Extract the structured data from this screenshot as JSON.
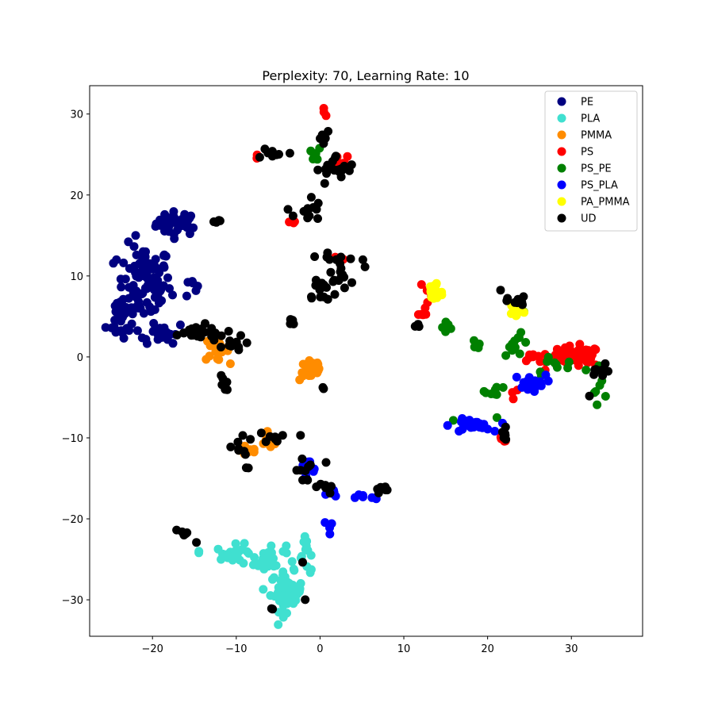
{
  "chart_data": {
    "type": "scatter",
    "title": "Perplexity: 70, Learning Rate: 10",
    "xlabel": "",
    "ylabel": "",
    "xlim": [
      -27.5,
      38.5
    ],
    "ylim": [
      -34.5,
      33.5
    ],
    "x_ticks": [
      -20,
      -10,
      0,
      10,
      20,
      30
    ],
    "y_ticks": [
      -30,
      -20,
      -10,
      0,
      10,
      20,
      30
    ],
    "x_tick_labels": [
      "−20",
      "−10",
      "0",
      "10",
      "20",
      "30"
    ],
    "y_tick_labels": [
      "−30",
      "−20",
      "−10",
      "0",
      "10",
      "20",
      "30"
    ],
    "grid": false,
    "legend_position": "top-right",
    "series": [
      {
        "name": "PE",
        "color": "#000080",
        "clusters": [
          {
            "cx": -17,
            "cy": 16.5,
            "sx": 1.6,
            "sy": 0.9,
            "n": 40
          },
          {
            "cx": -21,
            "cy": 9,
            "sx": 2.0,
            "sy": 3.0,
            "n": 90
          },
          {
            "cx": -23.5,
            "cy": 5,
            "sx": 1.2,
            "sy": 2.0,
            "n": 30
          },
          {
            "cx": -19,
            "cy": 3,
            "sx": 2.0,
            "sy": 0.8,
            "n": 25
          },
          {
            "cx": -15.5,
            "cy": 9,
            "sx": 0.5,
            "sy": 0.8,
            "n": 6
          }
        ]
      },
      {
        "name": "PLA",
        "color": "#40e0d0",
        "clusters": [
          {
            "cx": -10,
            "cy": -24.5,
            "sx": 1.5,
            "sy": 0.8,
            "n": 25
          },
          {
            "cx": -6,
            "cy": -25,
            "sx": 1.2,
            "sy": 1.2,
            "n": 25
          },
          {
            "cx": -4,
            "cy": -29,
            "sx": 1.2,
            "sy": 1.5,
            "n": 50
          },
          {
            "cx": -1.5,
            "cy": -24.5,
            "sx": 0.6,
            "sy": 1.5,
            "n": 12
          },
          {
            "cx": -14.5,
            "cy": -24.2,
            "sx": 0.2,
            "sy": 0.2,
            "n": 2
          }
        ]
      },
      {
        "name": "PMMA",
        "color": "#ff8c00",
        "clusters": [
          {
            "cx": -12.5,
            "cy": 1,
            "sx": 1.0,
            "sy": 0.9,
            "n": 22
          },
          {
            "cx": -1,
            "cy": -1.5,
            "sx": 0.9,
            "sy": 0.9,
            "n": 30
          },
          {
            "cx": -8.5,
            "cy": -11.5,
            "sx": 0.7,
            "sy": 0.6,
            "n": 10
          },
          {
            "cx": -6,
            "cy": -10.5,
            "sx": 0.8,
            "sy": 0.5,
            "n": 12
          }
        ]
      },
      {
        "name": "PS",
        "color": "#ff0000",
        "clusters": [
          {
            "cx": 0.5,
            "cy": 30.2,
            "sx": 0.3,
            "sy": 0.3,
            "n": 3
          },
          {
            "cx": 2.5,
            "cy": 24,
            "sx": 0.6,
            "sy": 0.6,
            "n": 6
          },
          {
            "cx": -7.5,
            "cy": 24.8,
            "sx": 0.5,
            "sy": 0.4,
            "n": 3
          },
          {
            "cx": -3.5,
            "cy": 16.5,
            "sx": 0.5,
            "sy": 0.2,
            "n": 3
          },
          {
            "cx": 12,
            "cy": 5,
            "sx": 0.5,
            "sy": 0.4,
            "n": 4
          },
          {
            "cx": 12,
            "cy": 9,
            "sx": 0.2,
            "sy": 0.2,
            "n": 1
          },
          {
            "cx": 13,
            "cy": 7,
            "sx": 0.6,
            "sy": 0.8,
            "n": 5
          },
          {
            "cx": 30.5,
            "cy": 0,
            "sx": 2.0,
            "sy": 0.8,
            "n": 45
          },
          {
            "cx": 25.5,
            "cy": 0,
            "sx": 0.7,
            "sy": 0.6,
            "n": 8
          },
          {
            "cx": 22,
            "cy": -10,
            "sx": 0.5,
            "sy": 0.8,
            "n": 4
          },
          {
            "cx": 23.5,
            "cy": -4.5,
            "sx": 0.5,
            "sy": 0.5,
            "n": 3
          },
          {
            "cx": 2.5,
            "cy": 12,
            "sx": 0.3,
            "sy": 0.4,
            "n": 2
          }
        ]
      },
      {
        "name": "PS_PE",
        "color": "#008000",
        "clusters": [
          {
            "cx": -0.5,
            "cy": 25,
            "sx": 0.5,
            "sy": 0.5,
            "n": 6
          },
          {
            "cx": 15,
            "cy": 4,
            "sx": 0.5,
            "sy": 0.8,
            "n": 6
          },
          {
            "cx": 18.5,
            "cy": 1.7,
            "sx": 0.5,
            "sy": 0.4,
            "n": 4
          },
          {
            "cx": 21,
            "cy": -4.2,
            "sx": 0.8,
            "sy": 0.4,
            "n": 8
          },
          {
            "cx": 23.5,
            "cy": 1.5,
            "sx": 1.0,
            "sy": 0.8,
            "n": 12
          },
          {
            "cx": 28,
            "cy": -1,
            "sx": 1.5,
            "sy": 0.8,
            "n": 10
          },
          {
            "cx": 33,
            "cy": -3,
            "sx": 1.2,
            "sy": 1.5,
            "n": 10
          },
          {
            "cx": 16,
            "cy": -7.2,
            "sx": 0.2,
            "sy": 0.2,
            "n": 1
          },
          {
            "cx": 24,
            "cy": 6,
            "sx": 0.5,
            "sy": 0.3,
            "n": 3
          },
          {
            "cx": 21,
            "cy": -7.5,
            "sx": 0.2,
            "sy": 0.2,
            "n": 1
          }
        ]
      },
      {
        "name": "PS_PLA",
        "color": "#0000ff",
        "clusters": [
          {
            "cx": 18,
            "cy": -8.5,
            "sx": 1.5,
            "sy": 0.5,
            "n": 30
          },
          {
            "cx": 25,
            "cy": -3.2,
            "sx": 1.2,
            "sy": 0.6,
            "n": 20
          },
          {
            "cx": -1.5,
            "cy": -14,
            "sx": 0.7,
            "sy": 0.8,
            "n": 10
          },
          {
            "cx": 1.5,
            "cy": -17,
            "sx": 0.5,
            "sy": 0.7,
            "n": 8
          },
          {
            "cx": 5.5,
            "cy": -17.3,
            "sx": 0.8,
            "sy": 0.3,
            "n": 6
          },
          {
            "cx": 1,
            "cy": -21,
            "sx": 0.3,
            "sy": 0.6,
            "n": 4
          }
        ]
      },
      {
        "name": "PA_PMMA",
        "color": "#ffff00",
        "clusters": [
          {
            "cx": 13.7,
            "cy": 8,
            "sx": 0.6,
            "sy": 1.0,
            "n": 30
          },
          {
            "cx": 23.5,
            "cy": 5.8,
            "sx": 0.5,
            "sy": 0.6,
            "n": 12
          }
        ]
      },
      {
        "name": "UD",
        "color": "#000000",
        "clusters": [
          {
            "cx": -5.5,
            "cy": 25.3,
            "sx": 1.5,
            "sy": 0.5,
            "n": 8
          },
          {
            "cx": 0.5,
            "cy": 27.5,
            "sx": 0.5,
            "sy": 0.5,
            "n": 6
          },
          {
            "cx": 2,
            "cy": 23,
            "sx": 1.5,
            "sy": 1.2,
            "n": 20
          },
          {
            "cx": -1.5,
            "cy": 18,
            "sx": 1.0,
            "sy": 1.2,
            "n": 12
          },
          {
            "cx": -12.5,
            "cy": 16.8,
            "sx": 0.6,
            "sy": 0.2,
            "n": 4
          },
          {
            "cx": 2.5,
            "cy": 11,
            "sx": 1.5,
            "sy": 1.6,
            "n": 25
          },
          {
            "cx": 0,
            "cy": 8,
            "sx": 1.2,
            "sy": 0.8,
            "n": 10
          },
          {
            "cx": -3.5,
            "cy": 4.2,
            "sx": 0.3,
            "sy": 0.5,
            "n": 4
          },
          {
            "cx": -15,
            "cy": 3,
            "sx": 2.5,
            "sy": 0.6,
            "n": 25
          },
          {
            "cx": -11,
            "cy": 1.5,
            "sx": 1.2,
            "sy": 0.8,
            "n": 10
          },
          {
            "cx": -11.5,
            "cy": -3.5,
            "sx": 0.3,
            "sy": 1.0,
            "n": 8
          },
          {
            "cx": -9.5,
            "cy": -11.5,
            "sx": 0.8,
            "sy": 1.5,
            "n": 10
          },
          {
            "cx": -5,
            "cy": -10,
            "sx": 1.5,
            "sy": 0.4,
            "n": 8
          },
          {
            "cx": -2,
            "cy": -14,
            "sx": 0.8,
            "sy": 1.0,
            "n": 10
          },
          {
            "cx": 0.5,
            "cy": -16,
            "sx": 0.6,
            "sy": 0.8,
            "n": 6
          },
          {
            "cx": 7.5,
            "cy": -16.5,
            "sx": 0.5,
            "sy": 0.4,
            "n": 6
          },
          {
            "cx": -16.5,
            "cy": -21.5,
            "sx": 0.4,
            "sy": 0.4,
            "n": 6
          },
          {
            "cx": -14.5,
            "cy": -23,
            "sx": 0.2,
            "sy": 0.2,
            "n": 1
          },
          {
            "cx": -5.5,
            "cy": -31,
            "sx": 0.3,
            "sy": 0.2,
            "n": 2
          },
          {
            "cx": -2,
            "cy": -30.2,
            "sx": 0.2,
            "sy": 0.2,
            "n": 1
          },
          {
            "cx": -2,
            "cy": -25,
            "sx": 0.2,
            "sy": 0.2,
            "n": 1
          },
          {
            "cx": 11.5,
            "cy": 3.8,
            "sx": 0.3,
            "sy": 0.3,
            "n": 3
          },
          {
            "cx": 23.5,
            "cy": 6.8,
            "sx": 0.7,
            "sy": 0.4,
            "n": 10
          },
          {
            "cx": 21.5,
            "cy": 8.3,
            "sx": 0.2,
            "sy": 0.2,
            "n": 1
          },
          {
            "cx": 22,
            "cy": -9.5,
            "sx": 0.4,
            "sy": 1.0,
            "n": 6
          },
          {
            "cx": 33.5,
            "cy": -2.2,
            "sx": 0.8,
            "sy": 0.8,
            "n": 8
          },
          {
            "cx": 32,
            "cy": -4.8,
            "sx": 0.2,
            "sy": 0.2,
            "n": 1
          },
          {
            "cx": 0.5,
            "cy": -3.8,
            "sx": 0.4,
            "sy": 0.2,
            "n": 2
          },
          {
            "cx": 0.8,
            "cy": -12.8,
            "sx": 0.2,
            "sy": 0.2,
            "n": 1
          }
        ]
      }
    ]
  }
}
